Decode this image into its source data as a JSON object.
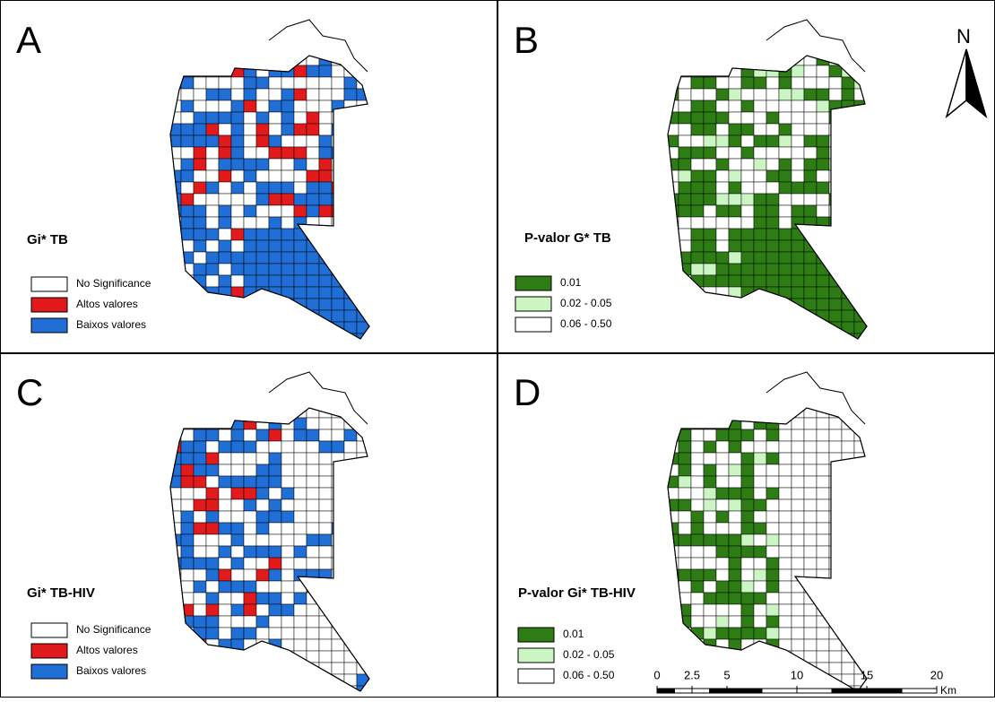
{
  "panels": [
    {
      "letter": "A",
      "legend_title": "Gi* TB",
      "legend": [
        {
          "label": "No Significance",
          "color": "#ffffff"
        },
        {
          "label": "Altos valores",
          "color": "#e31a1c"
        },
        {
          "label": "Baixos valores",
          "color": "#1f6fd6"
        }
      ]
    },
    {
      "letter": "B",
      "legend_title": "P-valor G* TB",
      "legend": [
        {
          "label": "0.01",
          "color": "#2e7d14"
        },
        {
          "label": "0.02 - 0.05",
          "color": "#ccf5c4"
        },
        {
          "label": "0.06 - 0.50",
          "color": "#ffffff"
        }
      ]
    },
    {
      "letter": "C",
      "legend_title": "Gi* TB-HIV",
      "legend": [
        {
          "label": "No Significance",
          "color": "#ffffff"
        },
        {
          "label": "Altos valores",
          "color": "#e31a1c"
        },
        {
          "label": "Baixos valores",
          "color": "#1f6fd6"
        }
      ]
    },
    {
      "letter": "D",
      "legend_title": "P-valor Gi* TB-HIV",
      "legend": [
        {
          "label": "0.01",
          "color": "#2e7d14"
        },
        {
          "label": "0.02 - 0.05",
          "color": "#ccf5c4"
        },
        {
          "label": "0.06 - 0.50",
          "color": "#ffffff"
        }
      ]
    }
  ],
  "north_arrow": "N",
  "scale_bar": {
    "ticks": [
      0,
      2.5,
      5,
      10,
      15,
      20
    ],
    "unit": "Km"
  }
}
